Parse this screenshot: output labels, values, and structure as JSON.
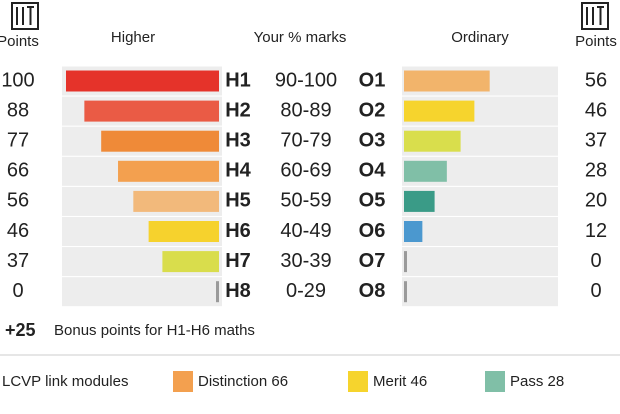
{
  "headers": {
    "marks": "Your % marks"
  },
  "chart_data": [
    {
      "type": "bar",
      "title": "Higher",
      "axis_label": "Points",
      "direction": "left",
      "categories": [
        "H1",
        "H2",
        "H3",
        "H4",
        "H5",
        "H6",
        "H7",
        "H8"
      ],
      "values": [
        100,
        88,
        77,
        66,
        56,
        46,
        37,
        0
      ],
      "colors": [
        "#e5332a",
        "#ea5b45",
        "#ef8a38",
        "#f3a04f",
        "#f2b97b",
        "#f6d22d",
        "#d9dd4c",
        "#9a9a9a"
      ],
      "xlim": [
        0,
        100
      ]
    },
    {
      "type": "bar",
      "title": "Ordinary",
      "axis_label": "Points",
      "direction": "right",
      "categories": [
        "O1",
        "O2",
        "O3",
        "O4",
        "O5",
        "O6",
        "O7",
        "O8"
      ],
      "values": [
        56,
        46,
        37,
        28,
        20,
        12,
        0,
        0
      ],
      "colors": [
        "#f2b46b",
        "#f6d42d",
        "#d9de4c",
        "#80bfa7",
        "#3a9b87",
        "#4b98cf",
        "#9a9a9a",
        "#9a9a9a"
      ],
      "xlim": [
        0,
        100
      ]
    }
  ],
  "marks": [
    "90-100",
    "80-89",
    "70-79",
    "60-69",
    "50-59",
    "40-49",
    "30-39",
    "0-29"
  ],
  "bonus": {
    "value": "+25",
    "text": "Bonus points for H1-H6 maths"
  },
  "legend": {
    "title": "LCVP link modules",
    "items": [
      {
        "label": "Distinction 66",
        "color": "#f3a04f"
      },
      {
        "label": "Merit 46",
        "color": "#f6d42d"
      },
      {
        "label": "Pass 28",
        "color": "#80bfa7"
      }
    ]
  }
}
